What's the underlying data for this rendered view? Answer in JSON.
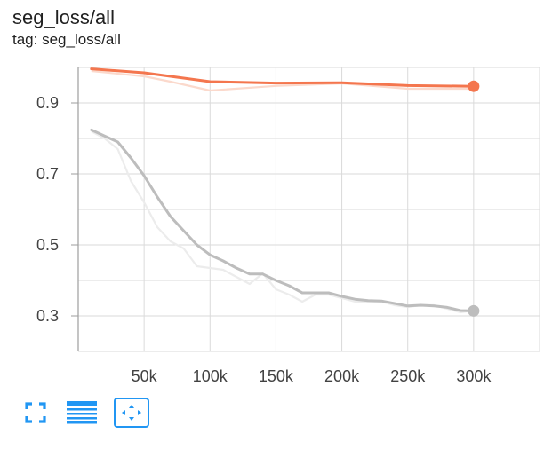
{
  "card": {
    "title": "seg_loss/all",
    "tag": "tag: seg_loss/all"
  },
  "toolbar": {
    "fullscreen_icon": "fullscreen-icon",
    "log_scale_icon": "menu-lines-icon",
    "fit_domain_icon": "fit-domain-icon",
    "accent_color": "#2196f3"
  },
  "chart_data": {
    "type": "line",
    "title": "seg_loss/all",
    "xlabel": "",
    "ylabel": "",
    "xlim": [
      0,
      350000
    ],
    "ylim": [
      0.2,
      1.0
    ],
    "x_ticks": [
      50000,
      100000,
      150000,
      200000,
      250000,
      300000
    ],
    "x_tick_labels": [
      "50k",
      "100k",
      "150k",
      "200k",
      "250k",
      "300k"
    ],
    "y_ticks": [
      0.3,
      0.5,
      0.7,
      0.9
    ],
    "y_tick_labels": [
      "0.3",
      "0.5",
      "0.7",
      "0.9"
    ],
    "grid": true,
    "series": [
      {
        "color": "#f4764e",
        "raw_color": "#fbd9cc",
        "x": [
          10000,
          50000,
          70000,
          100000,
          150000,
          200000,
          250000,
          300000
        ],
        "raw": [
          0.99,
          0.975,
          0.96,
          0.935,
          0.948,
          0.955,
          0.94,
          0.94
        ],
        "smoothed": [
          0.996,
          0.985,
          0.975,
          0.96,
          0.956,
          0.957,
          0.949,
          0.947
        ],
        "last_point": {
          "x": 300000,
          "y": 0.947
        }
      },
      {
        "color": "#bdbdbd",
        "raw_color": "#ececec",
        "x": [
          10000,
          20000,
          30000,
          40000,
          50000,
          60000,
          70000,
          80000,
          90000,
          100000,
          110000,
          120000,
          130000,
          140000,
          150000,
          160000,
          170000,
          180000,
          190000,
          200000,
          210000,
          220000,
          230000,
          240000,
          250000,
          260000,
          270000,
          280000,
          290000,
          300000
        ],
        "raw": [
          0.82,
          0.8,
          0.77,
          0.68,
          0.62,
          0.55,
          0.51,
          0.49,
          0.44,
          0.435,
          0.43,
          0.41,
          0.39,
          0.42,
          0.375,
          0.36,
          0.34,
          0.36,
          0.36,
          0.35,
          0.34,
          0.34,
          0.34,
          0.33,
          0.325,
          0.33,
          0.33,
          0.32,
          0.31,
          0.315
        ],
        "smoothed": [
          0.824,
          0.807,
          0.79,
          0.745,
          0.695,
          0.635,
          0.58,
          0.54,
          0.5,
          0.472,
          0.455,
          0.435,
          0.418,
          0.418,
          0.4,
          0.385,
          0.365,
          0.365,
          0.365,
          0.355,
          0.347,
          0.343,
          0.342,
          0.335,
          0.328,
          0.33,
          0.328,
          0.324,
          0.315,
          0.314
        ],
        "last_point": {
          "x": 300000,
          "y": 0.314
        }
      }
    ]
  }
}
